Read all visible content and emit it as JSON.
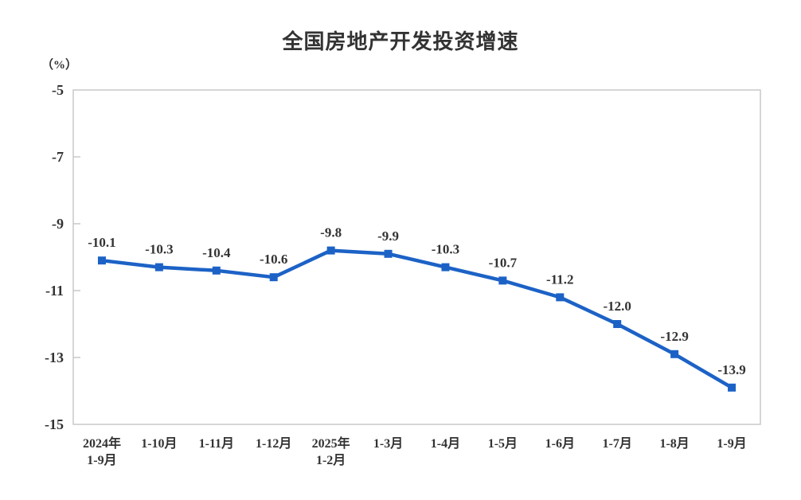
{
  "chart": {
    "title": "全国房地产开发投资增速",
    "unit_label": "（%）"
  },
  "chart_data": {
    "type": "line",
    "title": "全国房地产开发投资增速",
    "ylabel": "（%）",
    "xlabel": "",
    "categories": [
      "2024年\n1-9月",
      "1-10月",
      "1-11月",
      "1-12月",
      "2025年\n1-2月",
      "1-3月",
      "1-4月",
      "1-5月",
      "1-6月",
      "1-7月",
      "1-8月",
      "1-9月"
    ],
    "values": [
      -10.1,
      -10.3,
      -10.4,
      -10.6,
      -9.8,
      -9.9,
      -10.3,
      -10.7,
      -11.2,
      -12.0,
      -12.9,
      -13.9
    ],
    "data_labels": [
      "-10.1",
      "-10.3",
      "-10.4",
      "-10.6",
      "-9.8",
      "-9.9",
      "-10.3",
      "-10.7",
      "-11.2",
      "-12.0",
      "-12.9",
      "-13.9"
    ],
    "ylim": [
      -15,
      -5
    ],
    "yticks": [
      -5,
      -7,
      -9,
      -11,
      -13,
      -15
    ],
    "ytick_labels": [
      "-5",
      "-7",
      "-9",
      "-11",
      "-13",
      "-15"
    ],
    "grid": false,
    "legend_position": "none",
    "line_color": "#1C62C6",
    "marker": "square",
    "marker_color": "#1C62C6",
    "axis_border_color": "#C9C9C9",
    "text_color": "#333333"
  }
}
